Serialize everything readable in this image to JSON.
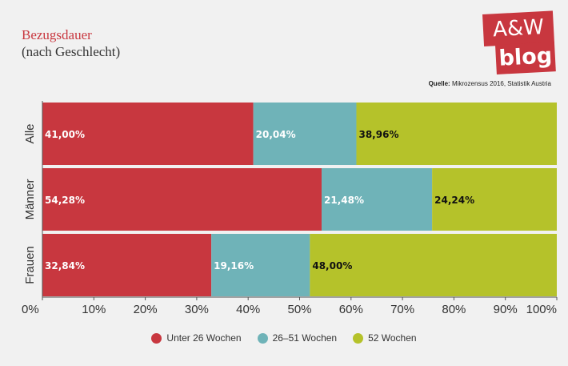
{
  "header": {
    "title": "Bezugsdauer",
    "subtitle": "(nach Geschlecht)",
    "source_label": "Quelle:",
    "source_text": "Mikrozensus 2016, Statistik Austria"
  },
  "logo": {
    "line1": "A&W",
    "line2": "blog"
  },
  "colors": {
    "accent": "#c8373f",
    "teal": "#6fb3b8",
    "lime": "#b5c22a",
    "background": "#f1f1f1"
  },
  "chart_data": {
    "type": "bar",
    "orientation": "horizontal",
    "stacked": true,
    "categories": [
      "Alle",
      "Männer",
      "Frauen"
    ],
    "series": [
      {
        "name": "Unter 26 Wochen",
        "color": "#c8373f",
        "values": [
          41.0,
          54.28,
          32.84
        ],
        "labels": [
          "41,00%",
          "54,28%",
          "32,84%"
        ]
      },
      {
        "name": "26–51 Wochen",
        "color": "#6fb3b8",
        "values": [
          20.04,
          21.48,
          19.16
        ],
        "labels": [
          "20,04%",
          "21,48%",
          "19,16%"
        ]
      },
      {
        "name": "52 Wochen",
        "color": "#b5c22a",
        "values": [
          38.96,
          24.24,
          48.0
        ],
        "labels": [
          "38,96%",
          "24,24%",
          "48,00%"
        ]
      }
    ],
    "xlim": [
      0,
      100
    ],
    "xticks": [
      "0%",
      "10%",
      "20%",
      "30%",
      "40%",
      "50%",
      "60%",
      "70%",
      "80%",
      "90%",
      "100%"
    ],
    "grid": false,
    "legend_position": "bottom"
  }
}
